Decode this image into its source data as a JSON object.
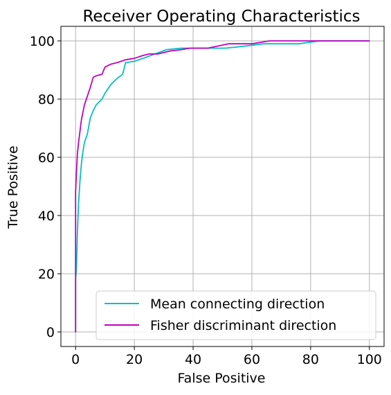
{
  "chart_data": {
    "type": "line",
    "title": "Receiver Operating Characteristics",
    "xlabel": "False Positive",
    "ylabel": "True Positive",
    "xlim": [
      -5,
      105
    ],
    "ylim": [
      -5,
      105
    ],
    "xticks": [
      0,
      20,
      40,
      60,
      80,
      100
    ],
    "yticks": [
      0,
      20,
      40,
      60,
      80,
      100
    ],
    "grid": true,
    "legend_position": "lower-right",
    "series": [
      {
        "name": "Mean connecting direction",
        "color": "#00bfbf",
        "x": [
          0,
          0,
          0.3,
          0.6,
          1,
          1.5,
          2,
          2.5,
          3,
          4,
          5,
          6,
          7,
          9,
          10,
          12,
          14,
          16,
          17,
          20,
          23,
          27,
          31,
          36,
          41,
          46,
          51,
          54,
          60,
          64,
          68,
          76,
          83,
          90,
          100
        ],
        "y": [
          0,
          18,
          22,
          34,
          44,
          52,
          58,
          62,
          65,
          68,
          73.5,
          76,
          78,
          80,
          82,
          85,
          87,
          88.5,
          92.5,
          93,
          94,
          95.5,
          97,
          97.5,
          97.5,
          97.5,
          97.5,
          97.8,
          98.5,
          99,
          99,
          99,
          100,
          100,
          100
        ]
      },
      {
        "name": "Fisher discriminant direction",
        "color": "#bf00bf",
        "x": [
          0,
          0,
          0.3,
          0.6,
          1,
          2,
          3,
          4,
          5,
          6,
          7,
          9,
          10,
          12,
          14,
          17,
          20,
          23,
          25,
          28,
          32,
          36,
          39,
          45,
          52,
          60,
          66,
          70,
          75,
          80,
          85,
          90,
          100
        ],
        "y": [
          0,
          48,
          55,
          61,
          65,
          73,
          78,
          81,
          84,
          87.5,
          88,
          88.5,
          91,
          92,
          92.5,
          93.5,
          94,
          95,
          95.5,
          95.5,
          96.5,
          97,
          97.5,
          97.5,
          99,
          99,
          100,
          100,
          100,
          100,
          100,
          100,
          100
        ]
      }
    ]
  }
}
